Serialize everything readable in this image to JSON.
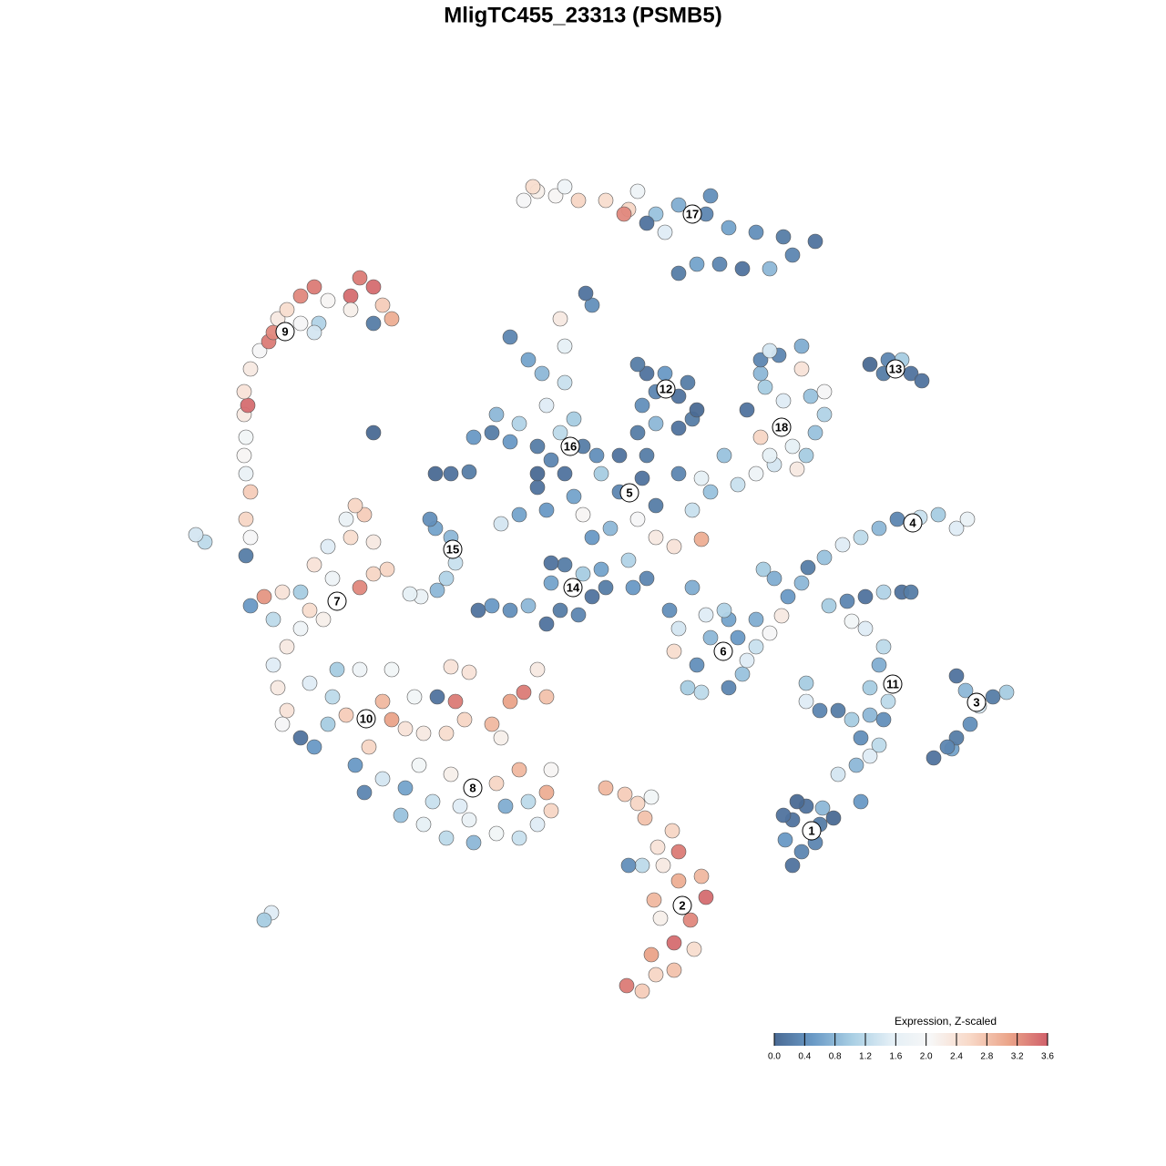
{
  "chart_data": {
    "type": "scatter",
    "title": "MligTC455_23313 (PSMB5)",
    "xlim": [
      0,
      1280
    ],
    "ylim": [
      1280,
      0
    ],
    "colorbar": {
      "title": "Expression, Z-scaled",
      "lim": [
        0,
        3.6
      ],
      "colors": [
        "#4a6a94",
        "#6a9ac6",
        "#a9cfe4",
        "#e4eff6",
        "#f7f7f7",
        "#f8d9c8",
        "#eba58a",
        "#d0606a"
      ],
      "ticks": [
        {
          "value": 0,
          "label": "0.0"
        },
        0.4,
        0.8,
        1.2,
        1.6,
        {
          "value": 2,
          "label": "2.0"
        },
        2.4,
        2.8,
        3.2,
        3.6
      ]
    },
    "clusters": [
      {
        "name": "1",
        "label_x": 891,
        "label_y": 368,
        "x": [
          870,
          880,
          862,
          870,
          900,
          915,
          885,
          903,
          875,
          895,
          860
        ],
        "y": [
          330,
          345,
          358,
          380,
          375,
          382,
          395,
          393,
          400,
          355,
          385
        ],
        "values": [
          0.1,
          0.3,
          0.5,
          0.1,
          0.2,
          0,
          0.1,
          0.8,
          0,
          0.3,
          0.1
        ]
      },
      {
        "name": "2",
        "label_x": 749,
        "label_y": 286,
        "x": [
          688,
          705,
          720,
          740,
          762,
          740,
          715,
          725,
          758,
          775,
          718,
          745,
          770,
          705,
          728,
          745,
          722,
          738,
          708,
          700,
          686,
          665,
          715,
          690
        ],
        "y": [
          198,
          192,
          210,
          215,
          238,
          245,
          232,
          272,
          270,
          295,
          292,
          313,
          318,
          330,
          330,
          345,
          350,
          368,
          382,
          398,
          408,
          415,
          405,
          330
        ],
        "values": [
          3.4,
          2.7,
          2.6,
          2.8,
          2.5,
          3.5,
          3.1,
          2.2,
          3.3,
          3.5,
          2.9,
          3,
          2.9,
          1.2,
          2.3,
          3.4,
          2.4,
          2.6,
          2.8,
          2.6,
          2.7,
          2.9,
          1.9,
          0.4
        ]
      },
      {
        "name": "3",
        "label_x": 1072,
        "label_y": 509,
        "x": [
          1025,
          1045,
          1050,
          1065,
          1075,
          1090,
          1105,
          1060,
          1050,
          1040
        ],
        "y": [
          448,
          458,
          470,
          485,
          505,
          515,
          520,
          522,
          538,
          460
        ],
        "values": [
          0.1,
          0.6,
          0.2,
          0.4,
          1.4,
          0.2,
          1,
          0.8,
          0.1,
          0.3
        ]
      },
      {
        "name": "4",
        "label_x": 1002,
        "label_y": 706,
        "x": [
          858,
          865,
          880,
          887,
          905,
          925,
          945,
          965,
          985,
          1010,
          1030,
          1050,
          1062,
          838,
          850
        ],
        "y": [
          604,
          625,
          640,
          657,
          668,
          682,
          690,
          700,
          710,
          712,
          715,
          700,
          710,
          655,
          645
        ],
        "values": [
          2.3,
          0.5,
          0.8,
          0.2,
          0.9,
          1.5,
          1.2,
          0.8,
          0.3,
          1.3,
          1,
          1.5,
          1.7,
          1,
          0.7
        ]
      },
      {
        "name": "5",
        "label_x": 691,
        "label_y": 739,
        "x": [
          650,
          670,
          700,
          720,
          740,
          680,
          705,
          660,
          630,
          720,
          760,
          770,
          690,
          640,
          600,
          745,
          655,
          680,
          710,
          620,
          780,
          590,
          570,
          550,
          770
        ],
        "y": [
          690,
          700,
          710,
          690,
          680,
          740,
          755,
          760,
          735,
          725,
          720,
          688,
          665,
          715,
          720,
          760,
          780,
          780,
          780,
          760,
          740,
          745,
          715,
          705,
          755
        ],
        "values": [
          0.5,
          0.8,
          2,
          2.3,
          2.4,
          0.3,
          0.1,
          1,
          0.6,
          0.2,
          1.3,
          3,
          1.1,
          2.1,
          0.5,
          0.3,
          0.4,
          0.1,
          0.2,
          0.1,
          0.9,
          0.1,
          0.6,
          1.4,
          1.6
        ]
      },
      {
        "name": "6",
        "label_x": 794,
        "label_y": 565,
        "x": [
          755,
          770,
          800,
          815,
          765,
          740,
          780,
          810,
          830,
          745,
          775,
          800,
          820,
          735,
          760,
          795,
          845,
          830
        ],
        "y": [
          525,
          520,
          525,
          540,
          550,
          565,
          580,
          580,
          570,
          590,
          605,
          600,
          555,
          610,
          635,
          610,
          585,
          600
        ],
        "values": [
          1,
          1.2,
          0.3,
          0.9,
          0.4,
          2.5,
          0.8,
          0.5,
          1.3,
          1.4,
          1.5,
          0.6,
          1.5,
          0.4,
          0.7,
          1.1,
          2,
          0.7
        ]
      },
      {
        "name": "7",
        "label_x": 370,
        "label_y": 620,
        "x": [
          300,
          315,
          330,
          300,
          340,
          355,
          290,
          310,
          345,
          365,
          395,
          410,
          425,
          360,
          385,
          410,
          380,
          400,
          390,
          275,
          330
        ],
        "y": [
          550,
          570,
          590,
          600,
          610,
          600,
          625,
          630,
          660,
          645,
          635,
          650,
          655,
          680,
          690,
          685,
          710,
          715,
          725,
          615,
          630
        ],
        "values": [
          1.5,
          2.3,
          1.8,
          1.2,
          2.5,
          2.2,
          3.2,
          2.4,
          2.4,
          1.8,
          3.3,
          2.6,
          2.6,
          1.5,
          2.5,
          2.3,
          1.7,
          2.7,
          2.6,
          0.5,
          1
        ]
      },
      {
        "name": "8",
        "label_x": 519,
        "label_y": 415,
        "x": [
          440,
          465,
          490,
          520,
          545,
          570,
          590,
          605,
          600,
          580,
          555,
          505,
          475,
          445,
          420,
          545,
          570,
          605,
          495,
          460,
          400,
          390,
          515
        ],
        "y": [
          385,
          375,
          360,
          355,
          365,
          360,
          375,
          390,
          410,
          400,
          395,
          395,
          400,
          415,
          425,
          420,
          435,
          435,
          430,
          440,
          410,
          440,
          380
        ],
        "values": [
          0.9,
          1.6,
          1.2,
          0.8,
          1.9,
          1.3,
          1.5,
          2.6,
          3,
          1.2,
          0.7,
          1.5,
          1.3,
          0.6,
          1.4,
          2.6,
          2.9,
          2.1,
          2.2,
          1.9,
          0.3,
          0.5,
          1.7
        ]
      },
      {
        "name": "9",
        "label_x": 313,
        "label_y": 916,
        "x": [
          270,
          275,
          270,
          275,
          270,
          268,
          270,
          268,
          272,
          268,
          275,
          285,
          295,
          300,
          305,
          315,
          330,
          345,
          360,
          350,
          330,
          385,
          395,
          410,
          420,
          430,
          410,
          385,
          345,
          225,
          215,
          298,
          290
        ],
        "y": [
          670,
          690,
          710,
          740,
          760,
          780,
          800,
          825,
          835,
          850,
          875,
          895,
          905,
          915,
          930,
          940,
          955,
          965,
          950,
          925,
          925,
          955,
          975,
          965,
          945,
          930,
          925,
          940,
          915,
          685,
          693,
          278,
          270
        ],
        "values": [
          0.2,
          2,
          2.6,
          2.7,
          1.7,
          2.1,
          1.9,
          2.3,
          3.5,
          2.4,
          2.3,
          2,
          3.4,
          3.3,
          2.3,
          2.5,
          3.3,
          3.4,
          2.1,
          1.1,
          2,
          3.5,
          3.4,
          3.5,
          2.7,
          3,
          0.2,
          2.2,
          1.4,
          1.2,
          1.4,
          1.5,
          1
        ]
      },
      {
        "name": "10",
        "label_x": 402,
        "label_y": 491,
        "x": [
          330,
          345,
          360,
          315,
          310,
          380,
          405,
          430,
          445,
          420,
          465,
          490,
          510,
          540,
          560,
          575,
          600,
          590,
          500,
          480,
          455,
          365,
          340,
          305,
          495,
          515,
          430,
          395,
          370,
          550
        ],
        "y": [
          470,
          460,
          485,
          500,
          485,
          495,
          460,
          490,
          480,
          510,
          475,
          475,
          490,
          485,
          510,
          520,
          515,
          545,
          510,
          515,
          515,
          515,
          530,
          525,
          548,
          542,
          545,
          545,
          545,
          470
        ],
        "values": [
          0.1,
          0.5,
          1,
          2.4,
          2,
          2.7,
          2.6,
          3.1,
          2.4,
          2.9,
          2.3,
          2.5,
          2.6,
          2.9,
          3.1,
          3.4,
          2.8,
          2.3,
          3.4,
          0.1,
          1.9,
          1.2,
          1.5,
          2.3,
          2.4,
          2.4,
          1.9,
          1.8,
          1,
          2.2
        ]
      },
      {
        "name": "11",
        "label_x": 980,
        "label_y": 529,
        "x": [
          920,
          940,
          955,
          965,
          945,
          935,
          920,
          900,
          885,
          955,
          970,
          975,
          955,
          965,
          970,
          950,
          935,
          910,
          930,
          950,
          970,
          990,
          1000,
          945,
          885
        ],
        "y": [
          430,
          440,
          450,
          462,
          470,
          490,
          500,
          500,
          510,
          495,
          490,
          510,
          525,
          550,
          570,
          590,
          598,
          615,
          620,
          625,
          630,
          630,
          630,
          400,
          530
        ],
        "values": [
          1.4,
          0.8,
          1.5,
          1.2,
          0.4,
          1,
          0.2,
          0.3,
          1.5,
          0.8,
          0.4,
          1.2,
          1,
          0.7,
          1.2,
          1.5,
          1.9,
          1,
          0.3,
          0.1,
          1.1,
          0.1,
          0.2,
          0.5,
          1
        ]
      },
      {
        "name": "12",
        "label_x": 731,
        "label_y": 853,
        "x": [
          700,
          720,
          745,
          760,
          705,
          720,
          745,
          755,
          710,
          730,
          700,
          765
        ],
        "y": [
          805,
          815,
          810,
          820,
          835,
          850,
          845,
          860,
          870,
          870,
          880,
          830
        ],
        "values": [
          0.2,
          0.8,
          0.1,
          0.2,
          0.4,
          0.3,
          0.1,
          0.2,
          0.1,
          0.5,
          0.2,
          0
        ]
      },
      {
        "name": "13",
        "label_x": 983,
        "label_y": 875,
        "x": [
          955,
          970,
          990,
          1000,
          1012,
          975
        ],
        "y": [
          880,
          870,
          885,
          870,
          862,
          885
        ],
        "values": [
          0,
          0.2,
          1,
          0.1,
          0.1,
          0.3
        ]
      },
      {
        "name": "14",
        "label_x": 629,
        "label_y": 635,
        "x": [
          525,
          540,
          560,
          580,
          600,
          615,
          635,
          650,
          665,
          695,
          710,
          605,
          620,
          640,
          660,
          605
        ],
        "y": [
          610,
          615,
          610,
          615,
          595,
          610,
          605,
          625,
          635,
          635,
          645,
          640,
          660,
          650,
          655,
          662
        ],
        "values": [
          0.1,
          0.5,
          0.4,
          0.8,
          0.1,
          0.2,
          0.3,
          0.1,
          0.2,
          0.5,
          0.3,
          0.6,
          0.2,
          1,
          0.6,
          0.1
        ]
      },
      {
        "name": "15",
        "label_x": 497,
        "label_y": 677,
        "x": [
          462,
          480,
          490,
          500,
          495,
          478,
          472,
          450
        ],
        "y": [
          625,
          632,
          645,
          662,
          690,
          700,
          710,
          628
        ],
        "values": [
          1.7,
          0.8,
          1.1,
          1.3,
          0.8,
          0.6,
          0.4,
          1.6
        ]
      },
      {
        "name": "16",
        "label_x": 626,
        "label_y": 790,
        "x": [
          590,
          605,
          590,
          615,
          630,
          640,
          560,
          540,
          520,
          545,
          570,
          600,
          620,
          595,
          580,
          560,
          620,
          615,
          478,
          495,
          515,
          650,
          643,
          410
        ],
        "y": [
          760,
          775,
          790,
          805,
          820,
          790,
          795,
          805,
          800,
          825,
          815,
          835,
          860,
          870,
          885,
          910,
          900,
          930,
          760,
          760,
          762,
          945,
          958,
          805
        ],
        "values": [
          0,
          0.3,
          0.2,
          1.2,
          1,
          0.2,
          0.5,
          0.2,
          0.5,
          0.8,
          1.1,
          1.5,
          1.3,
          0.8,
          0.6,
          0.3,
          1.6,
          2.3,
          0,
          0.1,
          0.2,
          0.4,
          0.1,
          0
        ]
      },
      {
        "name": "17",
        "label_x": 760,
        "label_y": 1045,
        "x": [
          745,
          765,
          790,
          815,
          845,
          870,
          895,
          860,
          830,
          800,
          775,
          745,
          720,
          730,
          710,
          690,
          665,
          635,
          610,
          590,
          575,
          585,
          620,
          700,
          685,
          780
        ],
        "y": [
          980,
          990,
          990,
          985,
          985,
          1000,
          1015,
          1020,
          1025,
          1030,
          1045,
          1055,
          1045,
          1025,
          1035,
          1050,
          1060,
          1060,
          1065,
          1070,
          1060,
          1075,
          1075,
          1070,
          1045,
          1065
        ],
        "values": [
          0.2,
          0.6,
          0.3,
          0.1,
          0.8,
          0.3,
          0.1,
          0.2,
          0.4,
          0.6,
          0.3,
          0.7,
          0.9,
          1.5,
          0.1,
          2.6,
          2.5,
          2.6,
          2.1,
          2.2,
          2,
          2.5,
          1.8,
          1.8,
          3.3,
          0.4
        ]
      },
      {
        "name": "18",
        "label_x": 858,
        "label_y": 811,
        "x": [
          810,
          830,
          850,
          875,
          885,
          845,
          835,
          870,
          895,
          905,
          890,
          905,
          860,
          840,
          835,
          855,
          880,
          835,
          820,
          795,
          845,
          880
        ],
        "y": [
          748,
          760,
          770,
          765,
          780,
          780,
          800,
          790,
          805,
          825,
          845,
          850,
          840,
          855,
          870,
          890,
          875,
          885,
          830,
          780,
          895,
          900
        ],
        "values": [
          1.3,
          1.8,
          1.4,
          2.3,
          1,
          1.6,
          2.6,
          1.6,
          0.9,
          1.1,
          0.9,
          2,
          1.5,
          1,
          0.8,
          0.3,
          2.4,
          0.3,
          0.1,
          0.9,
          1.4,
          0.7
        ]
      }
    ]
  }
}
